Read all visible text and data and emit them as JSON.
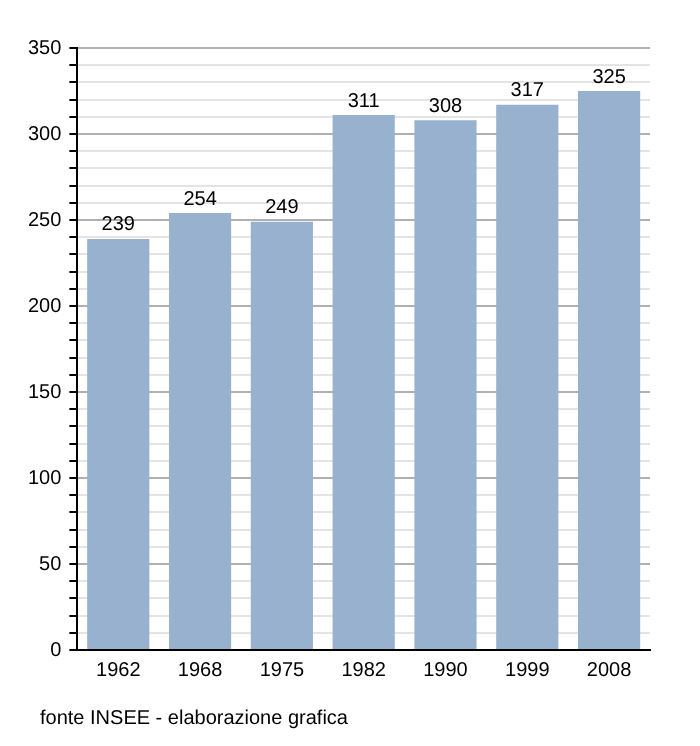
{
  "chart_data": {
    "type": "bar",
    "categories": [
      "1962",
      "1968",
      "1975",
      "1982",
      "1990",
      "1999",
      "2008"
    ],
    "values": [
      239,
      254,
      249,
      311,
      308,
      317,
      325
    ],
    "color": "#97b1cf",
    "ylim": [
      0,
      350
    ],
    "yticks": [
      0,
      {
        "value": 10,
        "label": null
      },
      {
        "value": 20,
        "label": null
      },
      {
        "value": 30,
        "label": null
      },
      {
        "value": 40,
        "label": null
      },
      50,
      {
        "value": 60,
        "label": null
      },
      {
        "value": 70,
        "label": null
      },
      {
        "value": 80,
        "label": null
      },
      {
        "value": 90,
        "label": null
      },
      100,
      {
        "value": 110,
        "label": null
      },
      {
        "value": 120,
        "label": null
      },
      {
        "value": 130,
        "label": null
      },
      {
        "value": 140,
        "label": null
      },
      150,
      {
        "value": 160,
        "label": null
      },
      {
        "value": 170,
        "label": null
      },
      {
        "value": 180,
        "label": null
      },
      {
        "value": 190,
        "label": null
      },
      200,
      {
        "value": 210,
        "label": null
      },
      {
        "value": 220,
        "label": null
      },
      {
        "value": 230,
        "label": null
      },
      {
        "value": 240,
        "label": null
      },
      250,
      {
        "value": 260,
        "label": null
      },
      {
        "value": 270,
        "label": null
      },
      {
        "value": 280,
        "label": null
      },
      {
        "value": 290,
        "label": null
      },
      300,
      {
        "value": 310,
        "label": null
      },
      {
        "value": 320,
        "label": null
      },
      {
        "value": 330,
        "label": null
      },
      {
        "value": 340,
        "label": null
      },
      350
    ],
    "grid": "y",
    "data_labels": true,
    "annotations": [
      "fonte INSEE - elaborazione grafica"
    ]
  }
}
